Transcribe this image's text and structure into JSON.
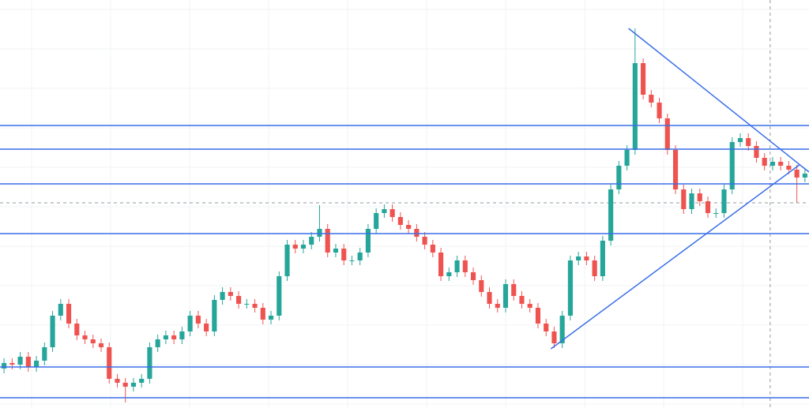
{
  "chart_data": {
    "type": "candlestick",
    "up_color": "#26a69a",
    "down_color": "#ef5350",
    "line_color": "#3a6fe8",
    "ylim": [
      0,
      517
    ],
    "xlim": [
      0,
      100
    ],
    "open": [
      50,
      57,
      55,
      65,
      52,
      60,
      77,
      117,
      132,
      107,
      92,
      87,
      82,
      77,
      37,
      32,
      27,
      32,
      37,
      77,
      87,
      92,
      87,
      97,
      117,
      107,
      97,
      137,
      147,
      142,
      132,
      132,
      127,
      112,
      117,
      167,
      207,
      202,
      207,
      217,
      227,
      197,
      202,
      187,
      187,
      197,
      227,
      247,
      252,
      242,
      232,
      227,
      217,
      207,
      197,
      167,
      172,
      187,
      172,
      162,
      147,
      132,
      127,
      157,
      142,
      132,
      127,
      107,
      97,
      82,
      117,
      187,
      192,
      187,
      167,
      212,
      277,
      307,
      327,
      437,
      397,
      387,
      367,
      327,
      277,
      252,
      272,
      262,
      247,
      247,
      277,
      337,
      342,
      332,
      317,
      307,
      312,
      307,
      302,
      292
    ],
    "high": [
      63,
      63,
      71,
      71,
      66,
      83,
      123,
      138,
      138,
      113,
      98,
      93,
      88,
      83,
      43,
      38,
      38,
      43,
      83,
      93,
      98,
      98,
      103,
      123,
      123,
      113,
      143,
      153,
      153,
      148,
      138,
      138,
      133,
      123,
      173,
      213,
      213,
      213,
      223,
      257,
      233,
      208,
      208,
      193,
      203,
      233,
      253,
      258,
      258,
      248,
      238,
      233,
      223,
      213,
      203,
      178,
      193,
      193,
      178,
      168,
      153,
      138,
      163,
      163,
      148,
      138,
      133,
      113,
      103,
      123,
      193,
      198,
      198,
      193,
      218,
      283,
      313,
      333,
      481,
      443,
      403,
      393,
      373,
      333,
      283,
      278,
      278,
      268,
      253,
      283,
      343,
      348,
      348,
      338,
      323,
      318,
      318,
      313,
      308,
      303
    ],
    "low": [
      44,
      49,
      49,
      46,
      46,
      54,
      71,
      111,
      101,
      86,
      81,
      76,
      71,
      31,
      26,
      7,
      21,
      26,
      31,
      71,
      81,
      81,
      81,
      91,
      101,
      91,
      91,
      131,
      136,
      126,
      126,
      121,
      106,
      106,
      111,
      161,
      196,
      196,
      201,
      211,
      191,
      191,
      181,
      181,
      181,
      191,
      221,
      241,
      236,
      226,
      221,
      211,
      201,
      191,
      161,
      161,
      166,
      166,
      156,
      141,
      126,
      121,
      121,
      136,
      126,
      121,
      101,
      91,
      76,
      76,
      111,
      181,
      181,
      161,
      161,
      206,
      271,
      301,
      321,
      391,
      381,
      361,
      321,
      271,
      246,
      246,
      256,
      241,
      241,
      241,
      271,
      331,
      326,
      311,
      301,
      301,
      301,
      296,
      260,
      286
    ],
    "close": [
      57,
      55,
      65,
      52,
      60,
      77,
      117,
      132,
      107,
      92,
      87,
      82,
      77,
      37,
      32,
      27,
      32,
      37,
      77,
      87,
      92,
      87,
      97,
      117,
      107,
      97,
      137,
      147,
      142,
      132,
      132,
      127,
      112,
      117,
      167,
      207,
      202,
      207,
      217,
      227,
      197,
      202,
      187,
      187,
      197,
      227,
      247,
      252,
      242,
      232,
      227,
      217,
      207,
      197,
      167,
      172,
      187,
      172,
      162,
      147,
      132,
      127,
      157,
      142,
      132,
      127,
      107,
      97,
      82,
      117,
      187,
      192,
      187,
      167,
      212,
      277,
      307,
      327,
      437,
      397,
      387,
      367,
      327,
      277,
      252,
      272,
      262,
      247,
      247,
      277,
      337,
      342,
      332,
      317,
      307,
      312,
      307,
      302,
      292,
      297
    ],
    "levels": [
      358,
      328,
      284,
      221,
      52,
      13
    ],
    "trendlines": [
      {
        "x": [
          77.7,
          100
        ],
        "y": [
          481,
          299
        ]
      },
      {
        "x": [
          68.1,
          98.8
        ],
        "y": [
          75,
          308
        ]
      }
    ],
    "crosshair": {
      "x": 95.2,
      "y": 260
    }
  }
}
